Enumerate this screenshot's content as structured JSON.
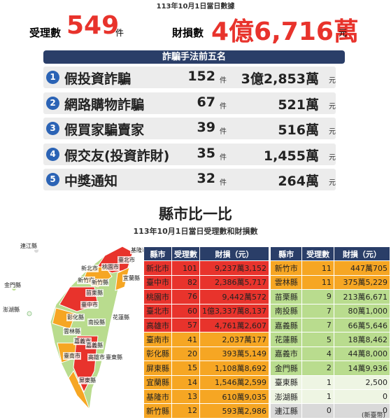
{
  "header": {
    "date": "113年10月1日當日數據",
    "cases_label": "受理數",
    "cases": 549,
    "cases_unit": "件",
    "loss_label": "財損數",
    "loss": "4億6,716萬",
    "loss_unit": "元"
  },
  "top5": {
    "title": "詐騙手法前五名",
    "rows": [
      {
        "rank": 1,
        "name": "假投資詐騙",
        "count": 152,
        "count_unit": "件",
        "amount": "3億2,853萬",
        "amount_unit": "元"
      },
      {
        "rank": 2,
        "name": "網路購物詐騙",
        "count": 67,
        "count_unit": "件",
        "amount": "521萬",
        "amount_unit": "元"
      },
      {
        "rank": 3,
        "name": "假買家騙賣家",
        "count": 39,
        "count_unit": "件",
        "amount": "516萬",
        "amount_unit": "元"
      },
      {
        "rank": 4,
        "name": "假交友(投資詐財)",
        "count": 35,
        "count_unit": "件",
        "amount": "1,455萬",
        "amount_unit": "元"
      },
      {
        "rank": 5,
        "name": "中獎通知",
        "count": 32,
        "count_unit": "件",
        "amount": "264萬",
        "amount_unit": "元"
      }
    ]
  },
  "county": {
    "title": "縣市比一比",
    "subtitle": "113年10月1日當日受理數和財損數",
    "map_labels": [
      "連江縣",
      "金門縣",
      "澎湖縣",
      "基隆市",
      "臺北市",
      "新北市",
      "桃園市",
      "新竹市",
      "新竹縣",
      "苗栗縣",
      "宜蘭縣",
      "臺中市",
      "彰化縣",
      "南投縣",
      "花蓮縣",
      "雲林縣",
      "嘉義市",
      "嘉義縣",
      "臺南市",
      "高雄市",
      "臺東縣",
      "屏東縣"
    ],
    "tables": [
      {
        "header": [
          "縣市",
          "受理數",
          "財損（元）"
        ],
        "rows": [
          {
            "cells": [
              "新北市",
              101,
              "9,237萬3,152"
            ],
            "color": "#e8332c"
          },
          {
            "cells": [
              "臺中市",
              82,
              "2,386萬5,717"
            ],
            "color": "#e8332c"
          },
          {
            "cells": [
              "桃園市",
              76,
              "9,442萬572"
            ],
            "color": "#e8332c"
          },
          {
            "cells": [
              "臺北市",
              60,
              "1億3,337萬8,137"
            ],
            "color": "#e8332c"
          },
          {
            "cells": [
              "高雄市",
              57,
              "4,761萬2,607"
            ],
            "color": "#e8332c"
          },
          {
            "cells": [
              "臺南市",
              41,
              "2,037萬177"
            ],
            "color": "#f6a623"
          },
          {
            "cells": [
              "彰化縣",
              20,
              "393萬5,149"
            ],
            "color": "#f6a623"
          },
          {
            "cells": [
              "屏東縣",
              15,
              "1,108萬8,692"
            ],
            "color": "#f6a623"
          },
          {
            "cells": [
              "宜蘭縣",
              14,
              "1,546萬2,599"
            ],
            "color": "#f6a623"
          },
          {
            "cells": [
              "基隆市",
              13,
              "610萬9,035"
            ],
            "color": "#f6a623"
          },
          {
            "cells": [
              "新竹縣",
              12,
              "593萬2,986"
            ],
            "color": "#f6a623"
          }
        ]
      },
      {
        "header": [
          "縣市",
          "受理數",
          "財損（元）"
        ],
        "rows": [
          {
            "cells": [
              "新竹市",
              11,
              "447萬705"
            ],
            "color": "#f6a623"
          },
          {
            "cells": [
              "雲林縣",
              11,
              "375萬5,229"
            ],
            "color": "#f6a623"
          },
          {
            "cells": [
              "苗栗縣",
              9,
              "213萬6,671"
            ],
            "color": "#b9dc8e"
          },
          {
            "cells": [
              "南投縣",
              7,
              "80萬1,000"
            ],
            "color": "#b9dc8e"
          },
          {
            "cells": [
              "嘉義縣",
              7,
              "66萬5,646"
            ],
            "color": "#b9dc8e"
          },
          {
            "cells": [
              "花蓮縣",
              5,
              "18萬8,462"
            ],
            "color": "#b9dc8e"
          },
          {
            "cells": [
              "嘉義市",
              4,
              "44萬8,000"
            ],
            "color": "#b9dc8e"
          },
          {
            "cells": [
              "金門縣",
              2,
              "14萬9,936"
            ],
            "color": "#b9dc8e"
          },
          {
            "cells": [
              "臺東縣",
              1,
              "2,500"
            ],
            "color": "#eef5e3"
          },
          {
            "cells": [
              "澎湖縣",
              1,
              "0"
            ],
            "color": "#eef5e3"
          },
          {
            "cells": [
              "連江縣",
              0,
              "0"
            ],
            "color": "#d9d9d9"
          }
        ]
      }
    ],
    "note": "(新臺幣)"
  }
}
